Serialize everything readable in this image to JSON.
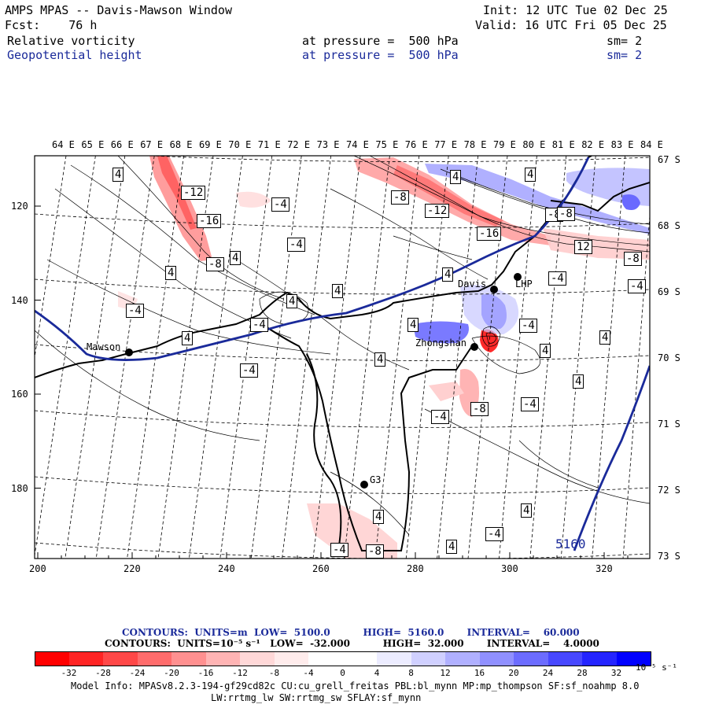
{
  "header": {
    "title": "AMPS MPAS -- Davis-Mawson Window",
    "fcst": "Fcst:    76 h",
    "init": "Init: 12 UTC Tue 02 Dec 25",
    "valid": "Valid: 16 UTC Fri 05 Dec 25",
    "field1": {
      "name": "Relative vorticity",
      "pressure": "at pressure =  500 hPa",
      "sm": "sm= 2"
    },
    "field2": {
      "name": "Geopotential height",
      "pressure": "at pressure =  500 hPa",
      "sm": "sm= 2"
    }
  },
  "map": {
    "lon_labels": [
      "64 E",
      "65 E",
      "66 E",
      "67 E",
      "68 E",
      "69 E",
      "70 E",
      "71 E",
      "72 E",
      "73 E",
      "74 E",
      "75 E",
      "76 E",
      "77 E",
      "78 E",
      "79 E",
      "80 E",
      "81 E",
      "82 E",
      "83 E",
      "84 E"
    ],
    "lat_labels": [
      "67 S",
      "68 S",
      "69 S",
      "70 S",
      "71 S",
      "72 S",
      "73 S"
    ],
    "x_ticks": [
      "200",
      "220",
      "240",
      "260",
      "280",
      "300",
      "320"
    ],
    "y_ticks": [
      "120",
      "140",
      "160",
      "180"
    ],
    "stations": [
      "Davis",
      "Mawson",
      "Zhongshan",
      "LHP",
      "G3"
    ],
    "height_label": "5160",
    "vort_labels": [
      "4",
      "-12",
      "-16",
      "-8",
      "4",
      "-4",
      "-4",
      "4",
      "-4",
      "4",
      "-4",
      "4",
      "4",
      "-4",
      "4",
      "-8",
      "-12",
      "-16",
      "4",
      "4",
      "-8",
      "-8",
      "-4",
      "-4",
      "12",
      "-8",
      "4",
      "4",
      "-4",
      "-8",
      "-4",
      "4",
      "4",
      "4",
      "-4",
      "4",
      "4",
      "-4",
      "-8",
      "4",
      "-4"
    ]
  },
  "legend": {
    "contour1": "CONTOURS:  UNITS=m  LOW=  5100.0          HIGH=  5160.0       INTERVAL=    60.000",
    "contour2": "CONTOURS:  UNITS=10⁻⁵ s⁻¹   LOW=  -32.000          HIGH=  32.000       INTERVAL=    4.0000",
    "colorbar_labels": [
      "-32",
      "-28",
      "-24",
      "-20",
      "-16",
      "-12",
      "-8",
      "-4",
      "0",
      "4",
      "8",
      "12",
      "16",
      "20",
      "24",
      "28",
      "32"
    ],
    "colorbar_unit": "10⁻⁵ s⁻¹",
    "colorbar_colors": [
      "#ff0000",
      "#ff2424",
      "#ff4848",
      "#ff6c6c",
      "#ff9090",
      "#ffb4b4",
      "#ffd8d8",
      "#ffecec",
      "#ffffff",
      "#ffffff",
      "#ececff",
      "#d0d0ff",
      "#b0b0ff",
      "#9090ff",
      "#6c6cff",
      "#4848ff",
      "#2424ff",
      "#0000ff"
    ]
  },
  "model_info": {
    "line1": "Model Info: MPASv8.2.3-194-gf29cd82c CU:cu_grell_freitas PBL:bl_mynn MP:mp_thompson SF:sf_noahmp 8.0",
    "line2": "LW:rrtmg_lw SW:rrtmg_sw SFLAY:sf_mynn"
  }
}
